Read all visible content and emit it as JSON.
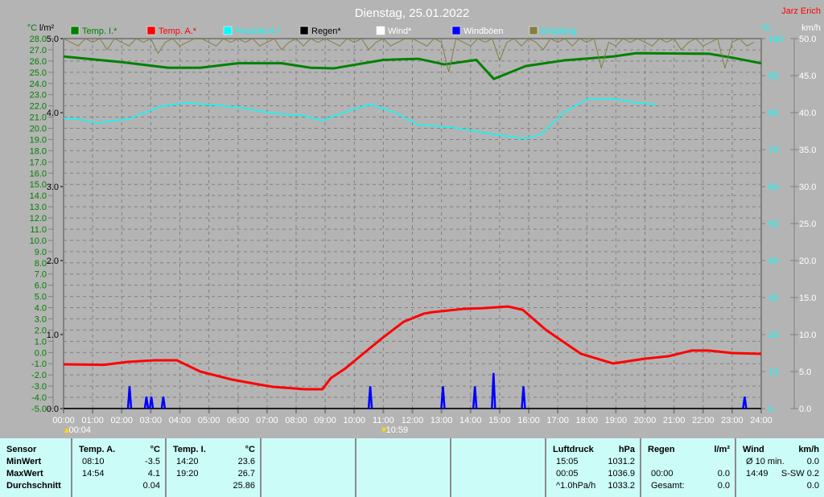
{
  "chart_data": {
    "type": "line",
    "title": "Dienstag, 25.01.2022",
    "author": "Jarz Erich",
    "x_ticks": [
      "00:00",
      "01:00",
      "02:00",
      "03:00",
      "04:00",
      "05:00",
      "06:00",
      "07:00",
      "08:00",
      "09:00",
      "10:00",
      "11:00",
      "12:00",
      "13:00",
      "14:00",
      "15:00",
      "16:00",
      "17:00",
      "18:00",
      "19:00",
      "20:00",
      "21:00",
      "22:00",
      "23:00",
      "24:00"
    ],
    "xlim": [
      0,
      24
    ],
    "axes": {
      "temp": {
        "unit": "°C",
        "ylim": [
          -5,
          28
        ],
        "ticks": [
          28.0,
          27.0,
          26.0,
          25.0,
          24.0,
          23.0,
          22.0,
          21.0,
          20.0,
          19.0,
          18.0,
          17.0,
          16.0,
          15.0,
          14.0,
          13.0,
          12.0,
          11.0,
          10.0,
          9.0,
          8.0,
          7.0,
          6.0,
          5.0,
          4.0,
          3.0,
          2.0,
          1.0,
          0.0,
          -1.0,
          -2.0,
          -3.0,
          -4.0,
          -5.0
        ],
        "color": "#008000"
      },
      "rain": {
        "unit": "l/m²",
        "ylim": [
          0,
          5
        ],
        "ticks": [
          5.0,
          4.0,
          3.0,
          2.0,
          1.0,
          0.0
        ],
        "color": "#000000"
      },
      "humidity": {
        "unit": "%",
        "ylim": [
          0,
          100
        ],
        "ticks": [
          100,
          90,
          80,
          70,
          60,
          50,
          40,
          30,
          20,
          10,
          0
        ],
        "color": "#00ffff"
      },
      "wind": {
        "unit": "km/h",
        "ylim": [
          0,
          50
        ],
        "ticks": [
          50.0,
          45.0,
          40.0,
          35.0,
          30.0,
          25.0,
          20.0,
          15.0,
          10.0,
          5.0,
          0.0
        ],
        "color": "#ffffff"
      }
    },
    "grid": true,
    "legend_placement": "top",
    "legend": [
      {
        "name": "Temp. I.*",
        "color": "#008000",
        "text_color": "#008000"
      },
      {
        "name": "Temp. A.*",
        "color": "#ff0000",
        "text_color": "#ff0000"
      },
      {
        "name": "Feuchte A.*",
        "color": "#00ffff",
        "text_color": "#00ffff"
      },
      {
        "name": "Regen*",
        "color": "#000000",
        "text_color": "#000000"
      },
      {
        "name": "Wind*",
        "color": "#ffffff",
        "text_color": "#ffffff"
      },
      {
        "name": "Windböen",
        "color": "#0000ff",
        "text_color": "#ffffff"
      },
      {
        "name": "Empfang",
        "color": "#808040",
        "text_color": "#00ffff"
      }
    ],
    "series": [
      {
        "name": "Temp. I.*",
        "axis": "temp",
        "color": "#008000",
        "x": [
          0,
          2,
          3.6,
          4.7,
          6,
          7.5,
          8.5,
          9.3,
          11,
          12.2,
          13.1,
          14.2,
          14.8,
          15.9,
          17.2,
          18.9,
          19.7,
          22.2,
          23,
          24
        ],
        "y": [
          26.4,
          25.9,
          25.4,
          25.4,
          25.8,
          25.8,
          25.4,
          25.35,
          26.1,
          26.2,
          25.7,
          26.1,
          24.4,
          25.55,
          26.05,
          26.4,
          26.7,
          26.65,
          26.3,
          25.8
        ]
      },
      {
        "name": "Temp. A.*",
        "axis": "temp",
        "color": "#ff0000",
        "x": [
          0,
          1.4,
          2.2,
          3.1,
          3.9,
          4.7,
          5.8,
          6.7,
          7.2,
          8.3,
          8.9,
          9.2,
          9.7,
          10.3,
          10.97,
          11.7,
          12.4,
          12.7,
          13.8,
          14.4,
          15.3,
          15.8,
          16.6,
          17.8,
          18.9,
          20,
          20.8,
          21.6,
          22.2,
          23,
          24
        ],
        "y": [
          -1.05,
          -1.1,
          -0.84,
          -0.7,
          -0.7,
          -1.7,
          -2.42,
          -2.85,
          -3.06,
          -3.28,
          -3.28,
          -2.27,
          -1.41,
          -0.12,
          1.3,
          2.74,
          3.47,
          3.6,
          3.9,
          3.95,
          4.1,
          3.8,
          2.0,
          -0.12,
          -0.98,
          -0.55,
          -0.34,
          0.17,
          0.17,
          -0.05,
          -0.12
        ]
      },
      {
        "name": "Feuchte A.*",
        "axis": "humidity",
        "color": "#00ffff",
        "x": [
          0,
          0.45,
          1.15,
          2.25,
          3.35,
          4.2,
          5.0,
          6.1,
          7.2,
          8.3,
          8.9,
          9.7,
          10.55,
          11.4,
          12.2,
          13.3,
          14.4,
          15.8,
          16.4,
          17.2,
          18.0,
          18.9,
          19.7,
          20.4
        ],
        "y": [
          78.5,
          78.3,
          77.2,
          78.3,
          81.7,
          82.6,
          82.2,
          81.3,
          79.8,
          79.1,
          77.8,
          80.2,
          82.2,
          80.0,
          76.7,
          76.1,
          74.6,
          73.0,
          73.9,
          80.0,
          83.6,
          83.8,
          82.6,
          82.2
        ]
      },
      {
        "name": "Windböen",
        "axis": "wind",
        "color": "#0000ff",
        "type": "spikes",
        "x": [
          2.27,
          2.85,
          3.02,
          3.43,
          10.55,
          13.05,
          14.15,
          14.79,
          15.82,
          23.43
        ],
        "y": [
          3.0,
          1.6,
          1.6,
          1.6,
          3.0,
          3.0,
          3.0,
          4.8,
          3.0,
          1.6
        ]
      },
      {
        "name": "Empfang",
        "axis": "humidity",
        "color": "#808040",
        "x_step_hours": 0.25,
        "y": [
          100,
          99,
          98,
          100,
          99,
          100,
          97,
          100,
          99,
          98,
          100,
          99,
          100,
          96,
          99,
          100,
          98,
          99,
          100,
          100,
          99,
          98,
          100,
          99,
          100,
          99,
          100,
          98,
          99,
          100,
          97,
          99,
          100,
          98,
          100,
          99,
          100,
          99,
          98,
          100,
          99,
          100,
          97,
          99,
          100,
          98,
          99,
          100,
          100,
          99,
          98,
          100,
          99,
          91,
          100,
          99,
          98,
          100,
          99,
          100,
          94,
          99,
          100,
          98,
          100,
          99,
          97,
          100,
          99,
          100,
          98,
          100,
          99,
          100,
          92,
          99,
          98,
          100,
          99,
          100,
          99,
          98,
          100,
          99,
          100,
          97,
          99,
          100,
          98,
          99,
          100,
          92,
          99,
          100,
          98,
          99
        ]
      }
    ],
    "events": [
      {
        "icon": "sunrise-icon",
        "time": "00:04",
        "x": 0.07
      },
      {
        "icon": "sunset-icon",
        "time": "10:59",
        "x": 10.98
      }
    ]
  },
  "table": {
    "cols": [
      {
        "rows": [
          [
            "Sensor",
            ""
          ],
          [
            "MinWert",
            ""
          ],
          [
            "MaxWert",
            ""
          ],
          [
            "Durchschnitt",
            ""
          ]
        ],
        "bold_all": true
      },
      {
        "head": [
          "Temp. A.",
          "°C"
        ],
        "rows": [
          [
            "08:10",
            "-3.5"
          ],
          [
            "14:54",
            "4.1"
          ],
          [
            "",
            "0.04"
          ]
        ]
      },
      {
        "head": [
          "Temp. I.",
          "°C"
        ],
        "rows": [
          [
            "14:20",
            "23.6"
          ],
          [
            "19:20",
            "26.7"
          ],
          [
            "",
            "25.86"
          ]
        ]
      },
      {
        "head": [
          "",
          ""
        ],
        "rows": []
      },
      {
        "head": [
          "",
          ""
        ],
        "rows": []
      },
      {
        "head": [
          "",
          ""
        ],
        "rows": []
      },
      {
        "head": [
          "Luftdruck",
          "hPa"
        ],
        "rows": [
          [
            "15:05",
            "1031.2"
          ],
          [
            "00:05",
            "1036.9"
          ],
          [
            "^1.0hPa/h",
            "1033.2"
          ]
        ]
      },
      {
        "head": [
          "Regen",
          "l/m²"
        ],
        "rows": [
          [
            "",
            ""
          ],
          [
            "00:00",
            "0.0"
          ],
          [
            "Gesamt:",
            "0.0"
          ]
        ]
      },
      {
        "head": [
          "Wind",
          "km/h"
        ],
        "rows": [
          [
            "Ø 10 min.",
            "0.0"
          ],
          [
            "14:49",
            "S-SW 0.2"
          ],
          [
            "",
            "0.0"
          ]
        ]
      }
    ]
  }
}
